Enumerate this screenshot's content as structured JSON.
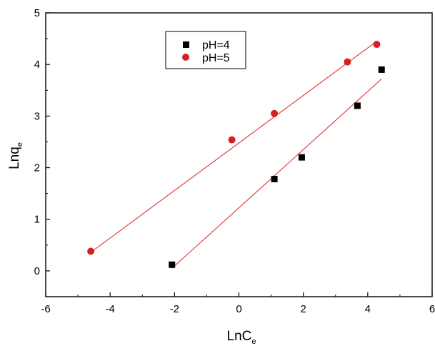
{
  "chart_data": {
    "type": "scatter",
    "title": "",
    "xlabel": "LnC",
    "xlabel_sub": "e",
    "ylabel": "Lnq",
    "ylabel_sub": "e",
    "xlim": [
      -6,
      6
    ],
    "ylim": [
      -0.5,
      5
    ],
    "xticks": [
      -6,
      -4,
      -2,
      0,
      2,
      4,
      6
    ],
    "yticks": [
      0,
      1,
      2,
      3,
      4,
      5
    ],
    "grid": false,
    "legend_position": "top-center",
    "series": [
      {
        "name": "pH=4",
        "marker": "square",
        "color": "#000000",
        "x": [
          -2.08,
          1.1,
          1.95,
          3.68,
          4.43
        ],
        "y": [
          0.12,
          1.78,
          2.2,
          3.2,
          3.9
        ],
        "fit_line": {
          "x": [
            -2.08,
            4.43
          ],
          "y": [
            0.05,
            3.72
          ],
          "color": "#e03030"
        }
      },
      {
        "name": "pH=5",
        "marker": "circle",
        "color": "#d42020",
        "x": [
          -4.6,
          -0.22,
          1.1,
          3.37,
          4.28
        ],
        "y": [
          0.38,
          2.54,
          3.05,
          4.05,
          4.39
        ],
        "fit_line": {
          "x": [
            -4.6,
            4.28
          ],
          "y": [
            0.36,
            4.45
          ],
          "color": "#e03030"
        }
      }
    ]
  }
}
